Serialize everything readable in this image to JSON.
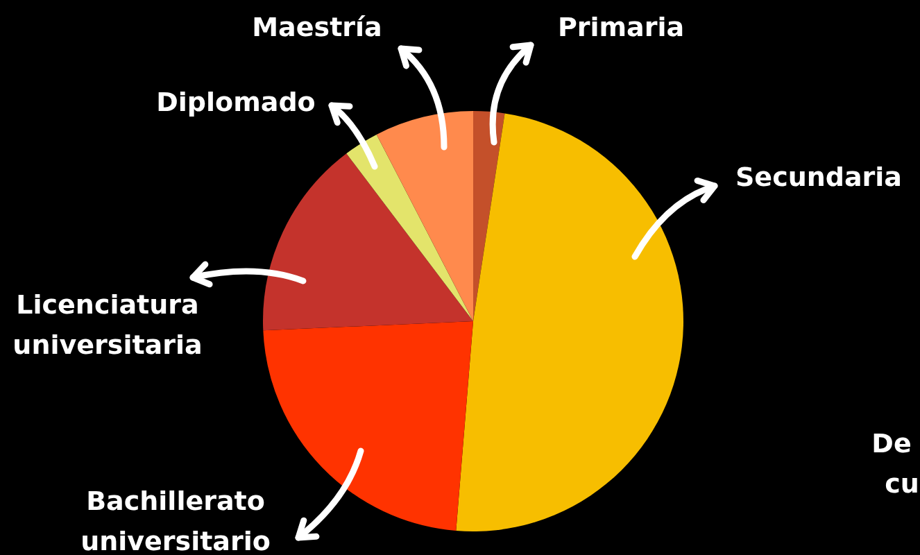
{
  "chart_data": {
    "type": "pie",
    "categories": [
      "Primaria",
      "Secundaria",
      "Bachillerato universitario",
      "Licenciatura universitaria",
      "Diplomado",
      "Maestría"
    ],
    "values": [
      2.4,
      48.9,
      23,
      15.4,
      2.7,
      7.6
    ],
    "colors": [
      "#c4502a",
      "#f7be00",
      "#ff3300",
      "#c4332c",
      "#e3e46b",
      "#ff8a4d"
    ],
    "annotations": [
      "De",
      "cu"
    ]
  }
}
